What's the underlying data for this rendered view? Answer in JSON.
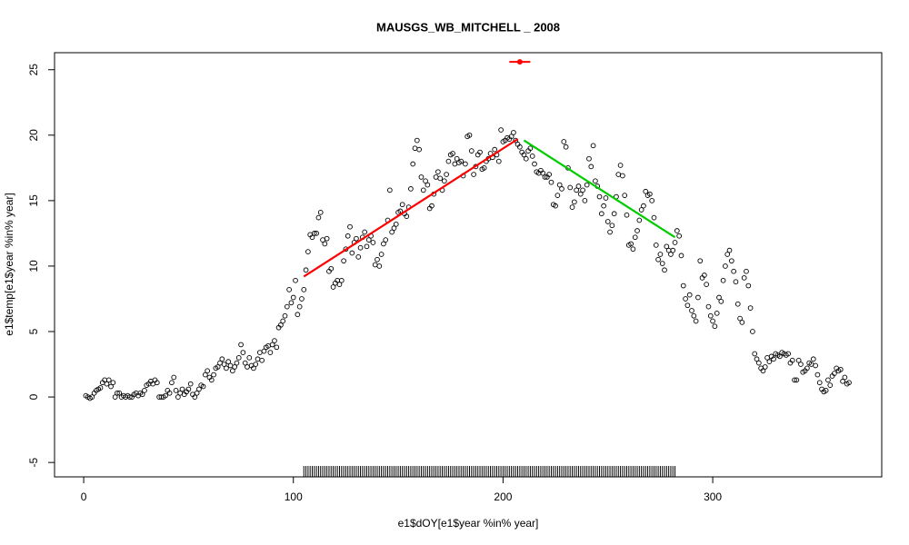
{
  "chart_data": {
    "type": "scatter",
    "title": "MAUSGS_WB_MITCHELL _ 2008",
    "x_label": "e1$dOY[e1$year %in% year]",
    "y_label": "e1$temp[e1$year %in% year]",
    "xlim": [
      -13.9,
      380.6
    ],
    "ylim": [
      -6.1,
      26.3
    ],
    "xticks": [
      0,
      100,
      200,
      300
    ],
    "yticks": [
      -5,
      0,
      5,
      10,
      15,
      20,
      25
    ],
    "point_color": "#000000",
    "x": [
      1,
      2,
      3,
      4,
      5,
      6,
      7,
      8,
      9,
      10,
      11,
      12,
      13,
      14,
      15,
      16,
      17,
      18,
      19,
      20,
      21,
      22,
      23,
      24,
      25,
      26,
      27,
      28,
      29,
      30,
      31,
      32,
      33,
      34,
      35,
      36,
      37,
      38,
      39,
      40,
      41,
      42,
      43,
      44,
      45,
      46,
      47,
      48,
      49,
      50,
      51,
      52,
      53,
      54,
      55,
      56,
      57,
      58,
      59,
      60,
      61,
      62,
      63,
      64,
      65,
      66,
      67,
      68,
      69,
      70,
      71,
      72,
      73,
      74,
      75,
      76,
      77,
      78,
      79,
      80,
      81,
      82,
      83,
      84,
      85,
      86,
      87,
      88,
      89,
      90,
      91,
      92,
      93,
      94,
      95,
      96,
      97,
      98,
      99,
      100,
      101,
      102,
      103,
      104,
      105,
      106,
      107,
      108,
      109,
      110,
      111,
      112,
      113,
      114,
      115,
      116,
      117,
      118,
      119,
      120,
      121,
      122,
      123,
      124,
      125,
      126,
      127,
      128,
      129,
      130,
      131,
      132,
      133,
      134,
      135,
      136,
      137,
      138,
      139,
      140,
      141,
      142,
      143,
      144,
      145,
      146,
      147,
      148,
      149,
      150,
      151,
      152,
      153,
      154,
      155,
      156,
      157,
      158,
      159,
      160,
      161,
      162,
      163,
      164,
      165,
      166,
      167,
      168,
      169,
      170,
      171,
      172,
      173,
      174,
      175,
      176,
      177,
      178,
      179,
      180,
      181,
      182,
      183,
      184,
      185,
      186,
      187,
      188,
      189,
      190,
      191,
      192,
      193,
      194,
      195,
      196,
      197,
      198,
      199,
      200,
      201,
      202,
      203,
      204,
      205,
      206,
      207,
      208,
      209,
      210,
      211,
      212,
      213,
      214,
      215,
      216,
      217,
      218,
      219,
      220,
      221,
      222,
      223,
      224,
      225,
      226,
      227,
      228,
      229,
      230,
      231,
      232,
      233,
      234,
      235,
      236,
      237,
      238,
      239,
      240,
      241,
      242,
      243,
      244,
      245,
      246,
      247,
      248,
      249,
      250,
      251,
      252,
      253,
      254,
      255,
      256,
      257,
      258,
      259,
      260,
      261,
      262,
      263,
      264,
      265,
      266,
      267,
      268,
      269,
      270,
      271,
      272,
      273,
      274,
      275,
      276,
      277,
      278,
      279,
      280,
      281,
      282,
      283,
      284,
      285,
      286,
      287,
      288,
      289,
      290,
      291,
      292,
      293,
      294,
      295,
      296,
      297,
      298,
      299,
      300,
      301,
      302,
      303,
      304,
      305,
      306,
      307,
      308,
      309,
      310,
      311,
      312,
      313,
      314,
      315,
      316,
      317,
      318,
      319,
      320,
      321,
      322,
      323,
      324,
      325,
      326,
      327,
      328,
      329,
      330,
      331,
      332,
      333,
      334,
      335,
      336,
      337,
      338,
      339,
      340,
      341,
      342,
      343,
      344,
      345,
      346,
      347,
      348,
      349,
      350,
      351,
      352,
      353,
      354,
      355,
      356,
      357,
      358,
      359,
      360,
      361,
      362,
      363,
      364,
      365
    ],
    "values": [
      0.1,
      0,
      -0.1,
      0,
      0.3,
      0.5,
      0.6,
      0.7,
      1.1,
      1.3,
      1.0,
      1.3,
      0.8,
      1.1,
      0,
      0.3,
      0.3,
      0,
      0.1,
      0,
      0.1,
      0,
      0,
      0.2,
      0.3,
      0.1,
      0.3,
      0.2,
      0.5,
      0.9,
      1.0,
      1.2,
      1.0,
      1.3,
      1.1,
      0,
      0,
      0,
      0.1,
      0.5,
      0.3,
      1.1,
      1.5,
      0.5,
      0,
      0.3,
      0.6,
      0.2,
      0.4,
      0.6,
      1.0,
      0.2,
      0,
      0.3,
      0.6,
      0.9,
      0.8,
      1.7,
      2.0,
      1.5,
      1.3,
      1.7,
      2.2,
      2.3,
      2.6,
      2.9,
      2.5,
      2.2,
      2.7,
      2.4,
      2.0,
      2.3,
      2.6,
      3.0,
      4.0,
      3.4,
      2.6,
      2.3,
      3.0,
      2.4,
      2.2,
      2.5,
      2.9,
      3.4,
      2.8,
      3.5,
      3.8,
      3.9,
      3.4,
      4.0,
      4.3,
      3.8,
      5.3,
      5.5,
      5.8,
      6.2,
      6.9,
      8.2,
      7.2,
      7.6,
      8.9,
      6.3,
      6.9,
      7.5,
      8.2,
      9.7,
      11.1,
      12.4,
      12.2,
      12.5,
      12.5,
      13.7,
      14.1,
      12.0,
      11.7,
      12.1,
      9.6,
      9.8,
      8.4,
      8.7,
      8.9,
      8.6,
      8.9,
      10.4,
      11.3,
      12.3,
      13.0,
      11.0,
      11.8,
      12.1,
      10.7,
      11.4,
      12.2,
      12.6,
      11.5,
      12.0,
      12.3,
      11.8,
      10.1,
      10.5,
      10.0,
      10.9,
      11.7,
      12.0,
      13.5,
      15.8,
      12.6,
      12.9,
      13.2,
      14.1,
      14.2,
      14.7,
      14.0,
      13.8,
      14.5,
      15.9,
      17.8,
      19.0,
      19.6,
      18.9,
      16.8,
      15.8,
      16.5,
      16.2,
      14.4,
      14.6,
      15.5,
      16.8,
      17.2,
      16.7,
      15.8,
      16.5,
      17.0,
      18.0,
      18.5,
      18.6,
      17.8,
      18.2,
      17.9,
      18.0,
      16.9,
      17.8,
      19.9,
      20.0,
      18.8,
      17.0,
      17.6,
      18.5,
      18.7,
      17.4,
      17.5,
      18.0,
      18.2,
      18.6,
      18.3,
      18.9,
      18.5,
      18.0,
      20.4,
      19.5,
      19.6,
      19.8,
      19.7,
      19.9,
      20.2,
      19.6,
      19.3,
      19.1,
      18.7,
      18.5,
      18.2,
      18.8,
      19.0,
      18.4,
      17.8,
      17.2,
      17.1,
      17.3,
      17.1,
      16.8,
      16.8,
      17.0,
      16.4,
      14.7,
      14.6,
      15.4,
      16.2,
      15.9,
      19.5,
      19.1,
      17.5,
      16.0,
      14.5,
      14.9,
      15.8,
      16.1,
      15.5,
      15.8,
      15.0,
      16.2,
      18.2,
      17.6,
      19.2,
      16.5,
      16.1,
      15.3,
      14.0,
      14.6,
      15.2,
      13.4,
      12.6,
      13.1,
      14.0,
      15.3,
      17.0,
      17.7,
      16.9,
      15.4,
      13.9,
      11.6,
      11.7,
      11.3,
      12.2,
      12.7,
      13.5,
      14.3,
      14.6,
      15.7,
      15.4,
      15.5,
      15.0,
      13.7,
      11.6,
      10.5,
      10.9,
      10.2,
      9.7,
      11.5,
      11.2,
      10.9,
      11.2,
      11.8,
      12.7,
      12.3,
      10.8,
      8.5,
      7.5,
      7.0,
      7.8,
      6.6,
      6.2,
      5.8,
      7.6,
      10.4,
      9.1,
      9.3,
      8.6,
      6.9,
      6.2,
      5.8,
      5.4,
      6.4,
      7.6,
      7.3,
      8.9,
      10.0,
      10.9,
      11.2,
      10.4,
      9.6,
      8.8,
      7.1,
      6.0,
      5.7,
      9.1,
      9.6,
      8.5,
      6.8,
      5.0,
      3.3,
      2.9,
      2.6,
      2.2,
      2.0,
      2.3,
      3.0,
      2.7,
      3.1,
      2.9,
      3.3,
      3.2,
      3.1,
      3.4,
      3.3,
      3.2,
      3.3,
      2.6,
      2.8,
      1.3,
      1.3,
      2.8,
      2.5,
      1.9,
      2.0,
      2.2,
      2.6,
      2.5,
      2.9,
      2.4,
      1.7,
      1.1,
      0.6,
      0.4,
      0.5,
      1.3,
      0.9,
      1.6,
      1.8,
      2.2,
      2.0,
      2.1,
      1.2,
      1.5,
      1.0,
      1.1
    ],
    "lines": [
      {
        "color": "#ff0000",
        "x": [
          105,
          207
        ],
        "values": [
          9.2,
          19.7
        ]
      },
      {
        "color": "#00cc00",
        "x": [
          210,
          282
        ],
        "values": [
          19.6,
          12.2
        ]
      }
    ],
    "marker": {
      "color": "#ff0000",
      "x": 208,
      "value": 25.6,
      "x_range": [
        203,
        213
      ]
    },
    "rug": {
      "color": "#000000",
      "x": [
        105,
        106,
        107,
        108,
        109,
        110,
        111,
        112,
        113,
        114,
        115,
        116,
        117,
        118,
        119,
        120,
        121,
        122,
        123,
        124,
        125,
        126,
        127,
        128,
        129,
        130,
        131,
        132,
        133,
        134,
        135,
        136,
        137,
        138,
        139,
        140,
        141,
        142,
        143,
        144,
        145,
        146,
        147,
        148,
        149,
        150,
        151,
        152,
        153,
        154,
        155,
        156,
        157,
        158,
        159,
        160,
        161,
        162,
        163,
        164,
        165,
        166,
        167,
        168,
        169,
        170,
        171,
        172,
        173,
        174,
        175,
        176,
        177,
        178,
        179,
        180,
        181,
        182,
        183,
        184,
        185,
        186,
        187,
        188,
        189,
        190,
        191,
        192,
        193,
        194,
        195,
        196,
        197,
        198,
        199,
        200,
        201,
        202,
        203,
        204,
        205,
        206,
        207,
        208,
        209,
        210,
        211,
        212,
        213,
        214,
        215,
        216,
        217,
        218,
        219,
        220,
        221,
        222,
        223,
        224,
        225,
        226,
        227,
        228,
        229,
        230,
        231,
        232,
        233,
        234,
        235,
        236,
        237,
        238,
        239,
        240,
        241,
        242,
        243,
        244,
        245,
        246,
        247,
        248,
        249,
        250,
        251,
        252,
        253,
        254,
        255,
        256,
        257,
        258,
        259,
        260,
        261,
        262,
        263,
        264,
        265,
        266,
        267,
        268,
        269,
        270,
        271,
        272,
        273,
        274,
        275,
        276,
        277,
        278,
        279,
        280,
        281,
        282
      ]
    }
  }
}
